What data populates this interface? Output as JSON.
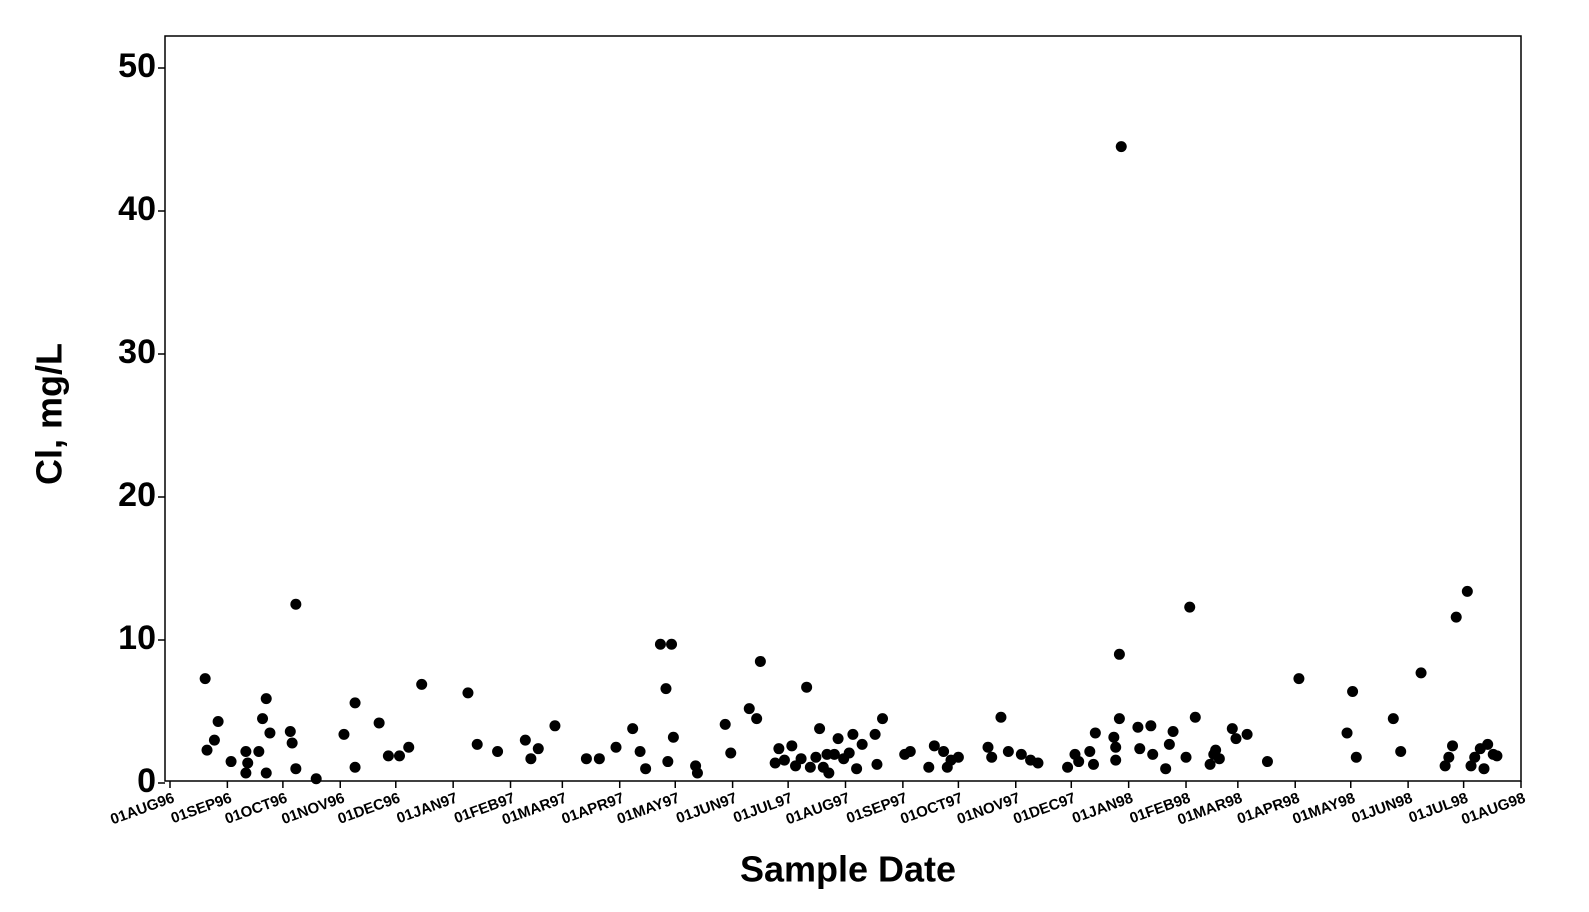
{
  "chart_data": {
    "type": "scatter",
    "x_label": "Sample Date",
    "y_label": "Cl, mg/L",
    "color": "#000000",
    "xlim": [
      "1996-08-01",
      "1998-08-01"
    ],
    "ylim": [
      0,
      50
    ],
    "yticks": [
      0,
      10,
      20,
      30,
      40,
      50
    ],
    "xticks": [
      {
        "value": "1996-08-01",
        "label": "01AUG96"
      },
      {
        "value": "1996-09-01",
        "label": "01SEP96"
      },
      {
        "value": "1996-10-01",
        "label": "01OCT96"
      },
      {
        "value": "1996-11-01",
        "label": "01NOV96"
      },
      {
        "value": "1996-12-01",
        "label": "01DEC96"
      },
      {
        "value": "1997-01-01",
        "label": "01JAN97"
      },
      {
        "value": "1997-02-01",
        "label": "01FEB97"
      },
      {
        "value": "1997-03-01",
        "label": "01MAR97"
      },
      {
        "value": "1997-04-01",
        "label": "01APR97"
      },
      {
        "value": "1997-05-01",
        "label": "01MAY97"
      },
      {
        "value": "1997-06-01",
        "label": "01JUN97"
      },
      {
        "value": "1997-07-01",
        "label": "01JUL97"
      },
      {
        "value": "1997-08-01",
        "label": "01AUG97"
      },
      {
        "value": "1997-09-01",
        "label": "01SEP97"
      },
      {
        "value": "1997-10-01",
        "label": "01OCT97"
      },
      {
        "value": "1997-11-01",
        "label": "01NOV97"
      },
      {
        "value": "1997-12-01",
        "label": "01DEC97"
      },
      {
        "value": "1998-01-01",
        "label": "01JAN98"
      },
      {
        "value": "1998-02-01",
        "label": "01FEB98"
      },
      {
        "value": "1998-03-01",
        "label": "01MAR98"
      },
      {
        "value": "1998-04-01",
        "label": "01APR98"
      },
      {
        "value": "1998-05-01",
        "label": "01MAY98"
      },
      {
        "value": "1998-06-01",
        "label": "01JUN98"
      },
      {
        "value": "1998-07-01",
        "label": "01JUL98"
      },
      {
        "value": "1998-08-01",
        "label": "01AUG98"
      }
    ],
    "x": [
      "1996-08-20",
      "1996-08-21",
      "1996-08-25",
      "1996-08-27",
      "1996-09-03",
      "1996-09-11",
      "1996-09-12",
      "1996-09-11",
      "1996-09-18",
      "1996-09-20",
      "1996-09-22",
      "1996-09-24",
      "1996-09-22",
      "1996-10-05",
      "1996-10-06",
      "1996-10-08",
      "1996-10-08",
      "1996-10-19",
      "1996-11-03",
      "1996-11-09",
      "1996-11-09",
      "1996-11-22",
      "1996-11-27",
      "1996-12-03",
      "1996-12-08",
      "1996-12-15",
      "1997-01-09",
      "1997-01-14",
      "1997-01-25",
      "1997-02-09",
      "1997-02-12",
      "1997-02-16",
      "1997-02-25",
      "1997-03-14",
      "1997-03-21",
      "1997-03-30",
      "1997-04-08",
      "1997-04-12",
      "1997-04-15",
      "1997-04-23",
      "1997-04-29",
      "1997-04-26",
      "1997-04-27",
      "1997-04-30",
      "1997-05-12",
      "1997-05-13",
      "1997-05-28",
      "1997-05-31",
      "1997-06-10",
      "1997-06-14",
      "1997-06-16",
      "1997-06-24",
      "1997-06-26",
      "1997-06-29",
      "1997-07-03",
      "1997-07-05",
      "1997-07-08",
      "1997-07-11",
      "1997-07-13",
      "1997-07-16",
      "1997-07-18",
      "1997-07-20",
      "1997-07-22",
      "1997-07-23",
      "1997-07-26",
      "1997-07-28",
      "1997-07-31",
      "1997-08-03",
      "1997-08-05",
      "1997-08-07",
      "1997-08-10",
      "1997-08-17",
      "1997-08-18",
      "1997-08-21",
      "1997-09-02",
      "1997-09-05",
      "1997-09-15",
      "1997-09-18",
      "1997-09-23",
      "1997-09-25",
      "1997-09-27",
      "1997-10-01",
      "1997-10-17",
      "1997-10-19",
      "1997-10-24",
      "1997-10-28",
      "1997-11-04",
      "1997-11-09",
      "1997-11-13",
      "1997-11-29",
      "1997-12-03",
      "1997-12-05",
      "1997-12-11",
      "1997-12-13",
      "1997-12-14",
      "1997-12-24",
      "1997-12-25",
      "1997-12-25",
      "1997-12-27",
      "1997-12-27",
      "1997-12-28",
      "1998-01-06",
      "1998-01-07",
      "1998-01-13",
      "1998-01-14",
      "1998-01-21",
      "1998-01-23",
      "1998-01-25",
      "1998-02-01",
      "1998-02-03",
      "1998-02-06",
      "1998-02-14",
      "1998-02-16",
      "1998-02-17",
      "1998-02-19",
      "1998-02-26",
      "1998-02-28",
      "1998-03-06",
      "1998-03-17",
      "1998-04-03",
      "1998-04-29",
      "1998-05-02",
      "1998-05-04",
      "1998-05-24",
      "1998-05-28",
      "1998-06-08",
      "1998-06-21",
      "1998-06-23",
      "1998-06-25",
      "1998-06-27",
      "1998-07-03",
      "1998-07-05",
      "1998-07-07",
      "1998-07-10",
      "1998-07-12",
      "1998-07-14",
      "1998-07-17",
      "1998-07-19"
    ],
    "values": [
      7.3,
      2.3,
      3.0,
      4.3,
      1.5,
      0.7,
      1.4,
      2.2,
      2.2,
      4.5,
      5.9,
      3.5,
      0.7,
      3.6,
      2.8,
      12.5,
      1.0,
      0.3,
      3.4,
      1.1,
      5.6,
      4.2,
      1.9,
      1.9,
      2.5,
      6.9,
      6.3,
      2.7,
      2.2,
      3.0,
      1.7,
      2.4,
      4.0,
      1.7,
      1.7,
      2.5,
      3.8,
      2.2,
      1.0,
      9.7,
      9.7,
      6.6,
      1.5,
      3.2,
      1.2,
      0.7,
      4.1,
      2.1,
      5.2,
      4.5,
      8.5,
      1.4,
      2.4,
      1.6,
      2.6,
      1.2,
      1.7,
      6.7,
      1.1,
      1.8,
      3.8,
      1.1,
      2.0,
      0.7,
      2.0,
      3.1,
      1.7,
      2.1,
      3.4,
      1.0,
      2.7,
      3.4,
      1.3,
      4.5,
      2.0,
      2.2,
      1.1,
      2.6,
      2.2,
      1.1,
      1.6,
      1.8,
      2.5,
      1.8,
      4.6,
      2.2,
      2.0,
      1.6,
      1.4,
      1.1,
      2.0,
      1.5,
      2.2,
      1.3,
      3.5,
      3.2,
      2.5,
      1.6,
      9.0,
      4.5,
      44.5,
      3.9,
      2.4,
      4.0,
      2.0,
      1.0,
      2.7,
      3.6,
      1.8,
      12.3,
      4.6,
      1.3,
      2.0,
      2.3,
      1.7,
      3.8,
      3.1,
      3.4,
      1.5,
      7.3,
      3.5,
      6.4,
      1.8,
      4.5,
      2.2,
      7.7,
      1.2,
      1.8,
      2.6,
      11.6,
      13.4,
      1.2,
      1.8,
      2.4,
      1.0,
      2.7,
      2.0,
      1.9
    ]
  }
}
